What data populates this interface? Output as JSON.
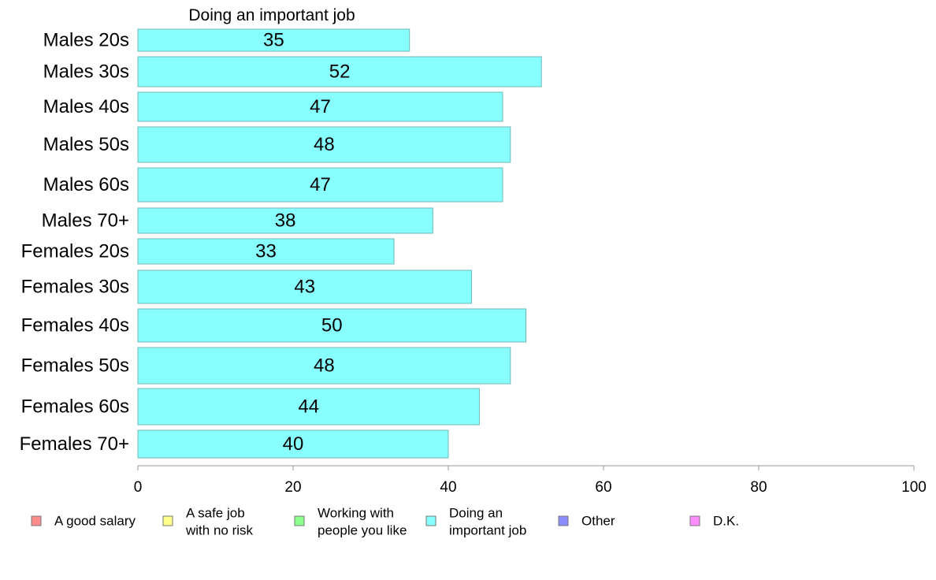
{
  "chart_data": {
    "type": "bar",
    "orientation": "horizontal",
    "title": "Doing an important job",
    "categories": [
      "Males 20s",
      "Males 30s",
      "Males 40s",
      "Males 50s",
      "Males 60s",
      "Males 70+",
      "Females 20s",
      "Females 30s",
      "Females 40s",
      "Females 50s",
      "Females 60s",
      "Females 70+"
    ],
    "values": [
      35,
      52,
      47,
      48,
      47,
      38,
      33,
      43,
      50,
      48,
      44,
      40
    ],
    "xlim": [
      0,
      100
    ],
    "xticks": [
      "0",
      "20",
      "40",
      "60",
      "80",
      "100"
    ],
    "grid": false,
    "bar_color": "#88ffff",
    "bar_edge": "#6fb7b7",
    "legend_position": "bottom",
    "legend": [
      {
        "lines": [
          "A good salary"
        ],
        "color": "#ff8c8c"
      },
      {
        "lines": [
          "A safe job",
          "with no risk"
        ],
        "color": "#ffff8c"
      },
      {
        "lines": [
          "Working with",
          "people you like"
        ],
        "color": "#8cff8c"
      },
      {
        "lines": [
          "Doing an",
          "important job"
        ],
        "color": "#88ffff"
      },
      {
        "lines": [
          "Other"
        ],
        "color": "#8c8cff"
      },
      {
        "lines": [
          "D.K."
        ],
        "color": "#ff8cff"
      }
    ]
  }
}
